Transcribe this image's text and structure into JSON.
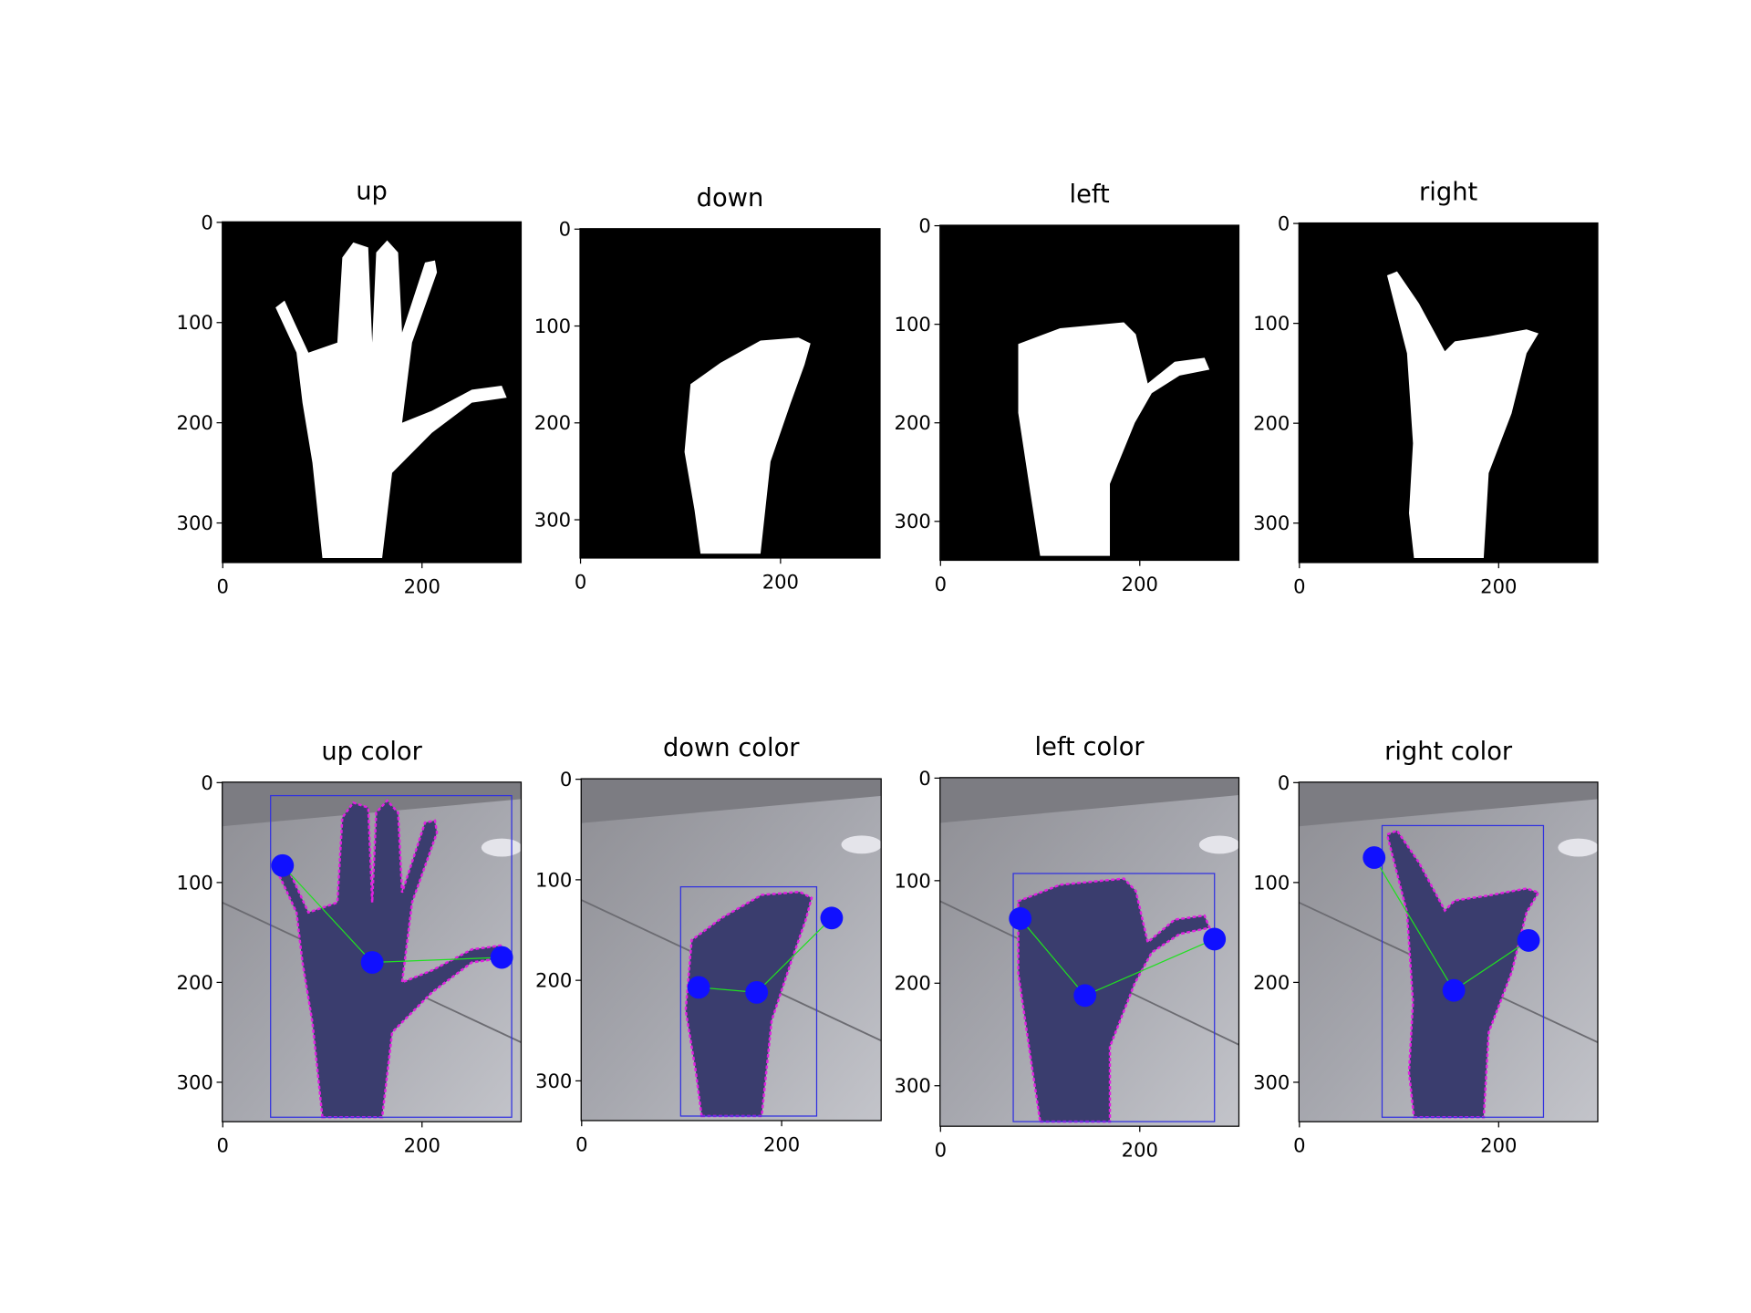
{
  "chart_data": [
    {
      "type": "image",
      "title": "up",
      "xlim": [
        -0.5,
        299.5
      ],
      "ylim": [
        339.5,
        -0.5
      ],
      "xticks": [
        0,
        200
      ],
      "yticks": [
        0,
        100,
        200,
        300
      ]
    },
    {
      "type": "image",
      "title": "down",
      "xlim": [
        -0.5,
        299.5
      ],
      "ylim": [
        339.5,
        -0.5
      ],
      "xticks": [
        0,
        200
      ],
      "yticks": [
        0,
        100,
        200,
        300
      ]
    },
    {
      "type": "image",
      "title": "left",
      "xlim": [
        -0.5,
        299.5
      ],
      "ylim": [
        339.5,
        -0.5
      ],
      "xticks": [
        0,
        200
      ],
      "yticks": [
        0,
        100,
        200,
        300
      ]
    },
    {
      "type": "image",
      "title": "right",
      "xlim": [
        -0.5,
        299.5
      ],
      "ylim": [
        339.5,
        -0.5
      ],
      "xticks": [
        0,
        200
      ],
      "yticks": [
        0,
        100,
        200,
        300
      ]
    },
    {
      "type": "image",
      "title": "up color",
      "xlim": [
        -0.5,
        299.5
      ],
      "ylim": [
        339.5,
        -0.5
      ],
      "xticks": [
        0,
        200
      ],
      "yticks": [
        0,
        100,
        200,
        300
      ]
    },
    {
      "type": "image",
      "title": "down color",
      "xlim": [
        -0.5,
        299.5
      ],
      "ylim": [
        339.5,
        -0.5
      ],
      "xticks": [
        0,
        200
      ],
      "yticks": [
        0,
        100,
        200,
        300
      ]
    },
    {
      "type": "image",
      "title": "left color",
      "xlim": [
        -0.5,
        299.5
      ],
      "ylim": [
        339.5,
        -0.5
      ],
      "xticks": [
        0,
        200
      ],
      "yticks": [
        0,
        100,
        200,
        300
      ]
    },
    {
      "type": "image",
      "title": "right color",
      "xlim": [
        -0.5,
        299.5
      ],
      "ylim": [
        339.5,
        -0.5
      ],
      "xticks": [
        0,
        200
      ],
      "yticks": [
        0,
        100,
        200,
        300
      ]
    }
  ]
}
